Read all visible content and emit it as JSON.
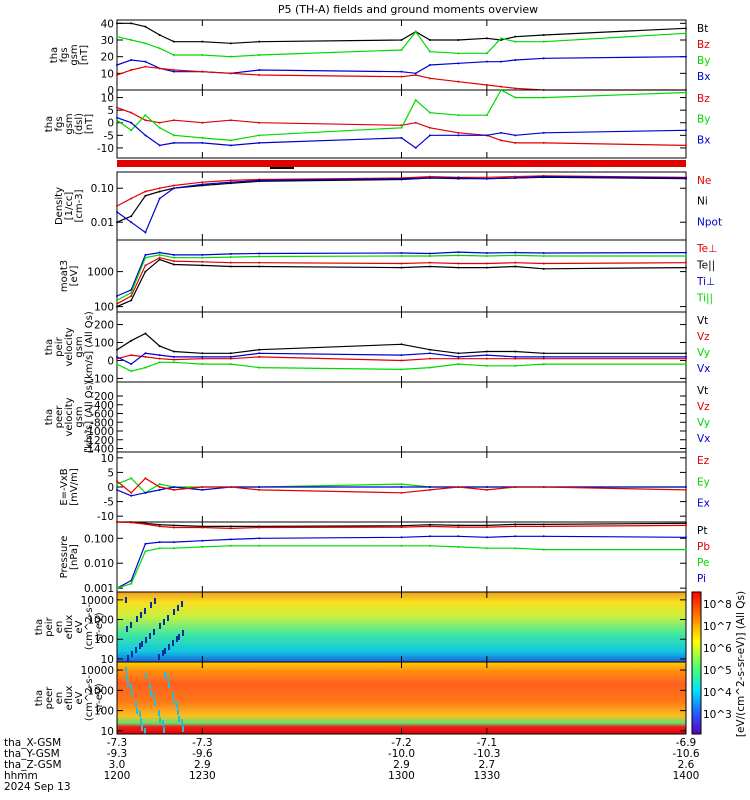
{
  "title": "P5 (TH-A) fields and ground moments overview",
  "colors": {
    "black": "#000000",
    "red": "#e00000",
    "green": "#00d800",
    "blue": "#0000d0"
  },
  "x_axis": {
    "range": [
      1200,
      1400
    ],
    "ticks": [
      1200,
      1230,
      1300,
      1330,
      1400
    ],
    "rows": [
      {
        "label": "tha_X-GSM",
        "values": [
          "-7.3",
          "-7.3",
          "-7.2",
          "-7.1",
          "-6.9"
        ]
      },
      {
        "label": "tha_Y-GSM",
        "values": [
          "-9.3",
          "-9.6",
          "-10.0",
          "-10.3",
          "-10.6"
        ]
      },
      {
        "label": "tha_Z-GSM",
        "values": [
          "3.0",
          "2.9",
          "2.9",
          "2.7",
          "2.6"
        ]
      },
      {
        "label": "hhmm",
        "values": [
          "1200",
          "1230",
          "1300",
          "1330",
          "1400"
        ]
      }
    ],
    "date": "2024 Sep 13"
  },
  "chart_data": [
    {
      "type": "line",
      "ylabel": [
        "tha",
        "fgs",
        "gsm",
        "[nT]"
      ],
      "ylim": [
        0,
        42
      ],
      "yticks": [
        "0",
        "10",
        "20",
        "30",
        "40"
      ],
      "ytick_values": [
        0,
        10,
        20,
        30,
        40
      ],
      "legend": [
        {
          "name": "Bt",
          "color": "black"
        },
        {
          "name": "Bz",
          "color": "red"
        },
        {
          "name": "By",
          "color": "green"
        },
        {
          "name": "Bx",
          "color": "blue"
        }
      ],
      "x": [
        1200,
        1205,
        1210,
        1215,
        1220,
        1230,
        1240,
        1250,
        1300,
        1305,
        1310,
        1320,
        1330,
        1335,
        1340,
        1350,
        1400
      ],
      "series": [
        {
          "name": "Bt",
          "color": "black",
          "values": [
            40,
            40,
            38,
            33,
            29,
            29,
            28,
            29,
            30,
            35,
            30,
            30,
            31,
            30,
            32,
            33,
            37
          ]
        },
        {
          "name": "By",
          "color": "green",
          "values": [
            32,
            30,
            28,
            25,
            21,
            21,
            20,
            21,
            24,
            35,
            23,
            22,
            22,
            31,
            29,
            29,
            34
          ]
        },
        {
          "name": "Bx",
          "color": "blue",
          "values": [
            15,
            18,
            17,
            13,
            11,
            11,
            10,
            12,
            11,
            10,
            15,
            16,
            17,
            17,
            18,
            19,
            20
          ]
        },
        {
          "name": "Bz",
          "color": "red",
          "values": [
            9,
            12,
            14,
            13,
            12,
            11,
            10,
            9,
            8,
            9,
            7,
            5,
            3,
            2,
            1,
            0,
            0
          ]
        }
      ]
    },
    {
      "type": "line",
      "ylabel": [
        "tha",
        "fgs",
        "gsm",
        "(dsl)",
        "[nT]"
      ],
      "ylim": [
        -14,
        13
      ],
      "yticks": [
        "-10",
        "-5",
        "0",
        "5",
        "10"
      ],
      "ytick_values": [
        -10,
        -5,
        0,
        5,
        10
      ],
      "legend": [
        {
          "name": "Bz",
          "color": "red"
        },
        {
          "name": "By",
          "color": "green"
        },
        {
          "name": "Bx",
          "color": "blue"
        }
      ],
      "x": [
        1200,
        1205,
        1210,
        1215,
        1220,
        1230,
        1240,
        1250,
        1300,
        1305,
        1310,
        1320,
        1330,
        1335,
        1340,
        1350,
        1400
      ],
      "series": [
        {
          "name": "Bz",
          "color": "red",
          "values": [
            6,
            4,
            1,
            0,
            1,
            0,
            1,
            0,
            -1,
            0,
            -2,
            -4,
            -5,
            -7,
            -8,
            -8,
            -9
          ]
        },
        {
          "name": "By",
          "color": "green",
          "values": [
            1,
            -3,
            3,
            -2,
            -5,
            -6,
            -7,
            -5,
            -2,
            9,
            4,
            3,
            3,
            13,
            10,
            10,
            12
          ]
        },
        {
          "name": "Bx",
          "color": "blue",
          "values": [
            2,
            0,
            -5,
            -9,
            -8,
            -8,
            -9,
            -8,
            -6,
            -10,
            -5,
            -5,
            -5,
            -4,
            -5,
            -4,
            -3
          ]
        }
      ]
    },
    {
      "type": "line",
      "ylabel": [
        "Density",
        "[1/cc]",
        "[cm-3]"
      ],
      "ylog": true,
      "ylim": [
        0.003,
        0.3
      ],
      "yticks": [
        "0.01",
        "0.10"
      ],
      "ytick_values": [
        0.01,
        0.1
      ],
      "legend": [
        {
          "name": "Ne",
          "color": "red"
        },
        {
          "name": "Ni",
          "color": "black"
        },
        {
          "name": "Npot",
          "color": "blue"
        }
      ],
      "x": [
        1200,
        1205,
        1210,
        1215,
        1220,
        1230,
        1240,
        1250,
        1300,
        1310,
        1320,
        1330,
        1340,
        1350,
        1400
      ],
      "series": [
        {
          "name": "Ne",
          "color": "red",
          "values": [
            0.03,
            0.05,
            0.08,
            0.1,
            0.12,
            0.15,
            0.17,
            0.18,
            0.2,
            0.22,
            0.21,
            0.21,
            0.22,
            0.23,
            0.21
          ]
        },
        {
          "name": "Ni",
          "color": "black",
          "values": [
            0.01,
            0.015,
            0.06,
            0.08,
            0.1,
            0.12,
            0.14,
            0.16,
            0.18,
            0.2,
            0.19,
            0.19,
            0.2,
            0.21,
            0.19
          ]
        },
        {
          "name": "Npot",
          "color": "blue",
          "values": [
            0.02,
            0.01,
            0.005,
            0.05,
            0.1,
            0.13,
            0.15,
            0.17,
            0.19,
            0.2,
            0.2,
            0.19,
            0.2,
            0.22,
            0.2
          ]
        }
      ]
    },
    {
      "type": "line",
      "ylabel": [
        "moat3",
        "[eV]"
      ],
      "ylog": true,
      "ylim": [
        70,
        8000
      ],
      "yticks": [
        "100",
        "1000"
      ],
      "ytick_values": [
        100,
        1000
      ],
      "legend": [
        {
          "name": "Te⊥",
          "color": "red"
        },
        {
          "name": "Te||",
          "color": "black"
        },
        {
          "name": "Ti⊥",
          "color": "blue"
        },
        {
          "name": "Ti||",
          "color": "green"
        }
      ],
      "x": [
        1200,
        1205,
        1210,
        1215,
        1220,
        1230,
        1240,
        1250,
        1300,
        1310,
        1320,
        1330,
        1340,
        1350,
        1400
      ],
      "series": [
        {
          "name": "Ti⊥",
          "color": "blue",
          "values": [
            200,
            300,
            3000,
            3500,
            3000,
            3000,
            3200,
            3300,
            3400,
            3300,
            3600,
            3400,
            3500,
            3400,
            3500
          ]
        },
        {
          "name": "Ti||",
          "color": "green",
          "values": [
            150,
            250,
            2500,
            3000,
            2500,
            2500,
            2600,
            2700,
            2800,
            2800,
            2900,
            2800,
            2900,
            2800,
            2800
          ]
        },
        {
          "name": "Te⊥",
          "color": "red",
          "values": [
            120,
            200,
            1500,
            2500,
            2000,
            1900,
            1800,
            1800,
            1700,
            1800,
            1700,
            1700,
            1800,
            1700,
            1800
          ]
        },
        {
          "name": "Te||",
          "color": "black",
          "values": [
            100,
            150,
            1000,
            2200,
            1600,
            1500,
            1400,
            1400,
            1300,
            1400,
            1300,
            1300,
            1400,
            1200,
            1300
          ]
        }
      ]
    },
    {
      "type": "line",
      "ylabel": [
        "tha",
        "peir",
        "velocity",
        "gsm",
        "[km/s] (All Qs)"
      ],
      "ylim": [
        -120,
        270
      ],
      "yticks": [
        "-100",
        "0",
        "100",
        "200"
      ],
      "ytick_values": [
        -100,
        0,
        100,
        200
      ],
      "legend": [
        {
          "name": "Vt",
          "color": "black"
        },
        {
          "name": "Vz",
          "color": "red"
        },
        {
          "name": "Vy",
          "color": "green"
        },
        {
          "name": "Vx",
          "color": "blue"
        }
      ],
      "x": [
        1200,
        1205,
        1210,
        1215,
        1220,
        1230,
        1240,
        1250,
        1300,
        1310,
        1320,
        1330,
        1340,
        1350,
        1400
      ],
      "series": [
        {
          "name": "Vt",
          "color": "black",
          "values": [
            60,
            110,
            150,
            80,
            50,
            40,
            40,
            60,
            90,
            60,
            40,
            50,
            50,
            40,
            40
          ]
        },
        {
          "name": "Vz",
          "color": "red",
          "values": [
            10,
            30,
            20,
            10,
            5,
            10,
            10,
            20,
            0,
            10,
            10,
            10,
            10,
            10,
            10
          ]
        },
        {
          "name": "Vy",
          "color": "green",
          "values": [
            -20,
            -60,
            -40,
            -10,
            -10,
            -20,
            -20,
            -40,
            -50,
            -40,
            -20,
            -30,
            -30,
            -20,
            -20
          ]
        },
        {
          "name": "Vx",
          "color": "blue",
          "values": [
            20,
            -20,
            40,
            30,
            20,
            20,
            20,
            40,
            30,
            40,
            20,
            30,
            20,
            20,
            20
          ]
        }
      ]
    },
    {
      "type": "line",
      "ylabel": [
        "tha",
        "peer",
        "velocity",
        "gsm",
        "[km/s] (All Qs)"
      ],
      "ylim": [
        -1480,
        120
      ],
      "yticks": [
        "-1400",
        "-1200",
        "-1000",
        "-800",
        "-600",
        "-400",
        "-200"
      ],
      "ytick_values": [
        -1400,
        -1200,
        -1000,
        -800,
        -600,
        -400,
        -200
      ],
      "legend": [
        {
          "name": "Vt",
          "color": "black"
        },
        {
          "name": "Vz",
          "color": "red"
        },
        {
          "name": "Vy",
          "color": "green"
        },
        {
          "name": "Vx",
          "color": "blue"
        }
      ],
      "series": []
    },
    {
      "type": "line",
      "ylabel": [
        "E=-VxB",
        "[mV/m]"
      ],
      "ylim": [
        -12,
        12
      ],
      "yticks": [
        "-10",
        "-5",
        "0",
        "5",
        "10"
      ],
      "ytick_values": [
        -10,
        -5,
        0,
        5,
        10
      ],
      "legend": [
        {
          "name": "Ez",
          "color": "red"
        },
        {
          "name": "Ey",
          "color": "green"
        },
        {
          "name": "Ex",
          "color": "blue"
        }
      ],
      "x": [
        1200,
        1205,
        1210,
        1215,
        1220,
        1230,
        1240,
        1250,
        1300,
        1310,
        1320,
        1330,
        1340,
        1350,
        1400
      ],
      "series": [
        {
          "name": "Ey",
          "color": "green",
          "values": [
            1,
            3,
            -2,
            1,
            0,
            0,
            0,
            0,
            1,
            0,
            0,
            0,
            0,
            0,
            0
          ]
        },
        {
          "name": "Ex",
          "color": "blue",
          "values": [
            -1,
            -3,
            -2,
            -1,
            0,
            -1,
            0,
            0,
            0,
            0,
            0,
            0,
            0,
            0,
            0
          ]
        },
        {
          "name": "Ez",
          "color": "red",
          "values": [
            2,
            -2,
            3,
            0,
            -1,
            0,
            0,
            -1,
            -2,
            -1,
            0,
            -1,
            0,
            0,
            -1
          ]
        }
      ]
    },
    {
      "type": "line",
      "ylabel": [
        "Pressure",
        "[nPa]"
      ],
      "ylog": true,
      "ylim": [
        0.0007,
        0.45
      ],
      "yticks": [
        "0.001",
        "0.010",
        "0.100"
      ],
      "ytick_values": [
        0.001,
        0.01,
        0.1
      ],
      "legend": [
        {
          "name": "Pt",
          "color": "black"
        },
        {
          "name": "Pb",
          "color": "red"
        },
        {
          "name": "Pe",
          "color": "green"
        },
        {
          "name": "Pi",
          "color": "blue"
        }
      ],
      "x": [
        1200,
        1205,
        1210,
        1215,
        1220,
        1230,
        1240,
        1250,
        1300,
        1310,
        1320,
        1330,
        1340,
        1350,
        1400
      ],
      "series": [
        {
          "name": "Pt",
          "color": "black",
          "values": [
            0.45,
            0.45,
            0.4,
            0.35,
            0.33,
            0.3,
            0.3,
            0.3,
            0.32,
            0.35,
            0.33,
            0.33,
            0.36,
            0.36,
            0.4
          ]
        },
        {
          "name": "Pb",
          "color": "red",
          "values": [
            0.44,
            0.43,
            0.37,
            0.3,
            0.27,
            0.27,
            0.25,
            0.27,
            0.28,
            0.3,
            0.28,
            0.28,
            0.3,
            0.3,
            0.33
          ]
        },
        {
          "name": "Pi",
          "color": "blue",
          "values": [
            0.001,
            0.002,
            0.06,
            0.07,
            0.07,
            0.08,
            0.09,
            0.1,
            0.11,
            0.12,
            0.12,
            0.11,
            0.12,
            0.12,
            0.11
          ]
        },
        {
          "name": "Pe",
          "color": "green",
          "values": [
            0.001,
            0.0015,
            0.03,
            0.04,
            0.04,
            0.045,
            0.05,
            0.05,
            0.05,
            0.05,
            0.045,
            0.04,
            0.04,
            0.035,
            0.035
          ]
        }
      ]
    },
    {
      "type": "heatmap",
      "ylabel": [
        "tha",
        "peir",
        "en",
        "eflux",
        "eV",
        "(cm^2-s-",
        "sr-eV)"
      ],
      "ylog": true,
      "ylim": [
        7,
        25000
      ],
      "yticks": [
        "10",
        "100",
        "1000",
        "10000"
      ],
      "ytick_values": [
        10,
        100,
        1000,
        10000
      ]
    },
    {
      "type": "heatmap",
      "ylabel": [
        "tha",
        "peer",
        "en",
        "eflux",
        "eV",
        "(cm^2-s-",
        "sr-eV)"
      ],
      "ylog": true,
      "ylim": [
        7,
        25000
      ],
      "yticks": [
        "10",
        "100",
        "1000",
        "10000"
      ],
      "ytick_values": [
        10,
        100,
        1000,
        10000
      ]
    }
  ],
  "colorbar": {
    "title": "[eV/(cm^2-s-sr-eV)] (All Qs)",
    "labels": [
      "10^8",
      "10^7",
      "10^6",
      "10^5",
      "10^4",
      "10^3"
    ]
  }
}
